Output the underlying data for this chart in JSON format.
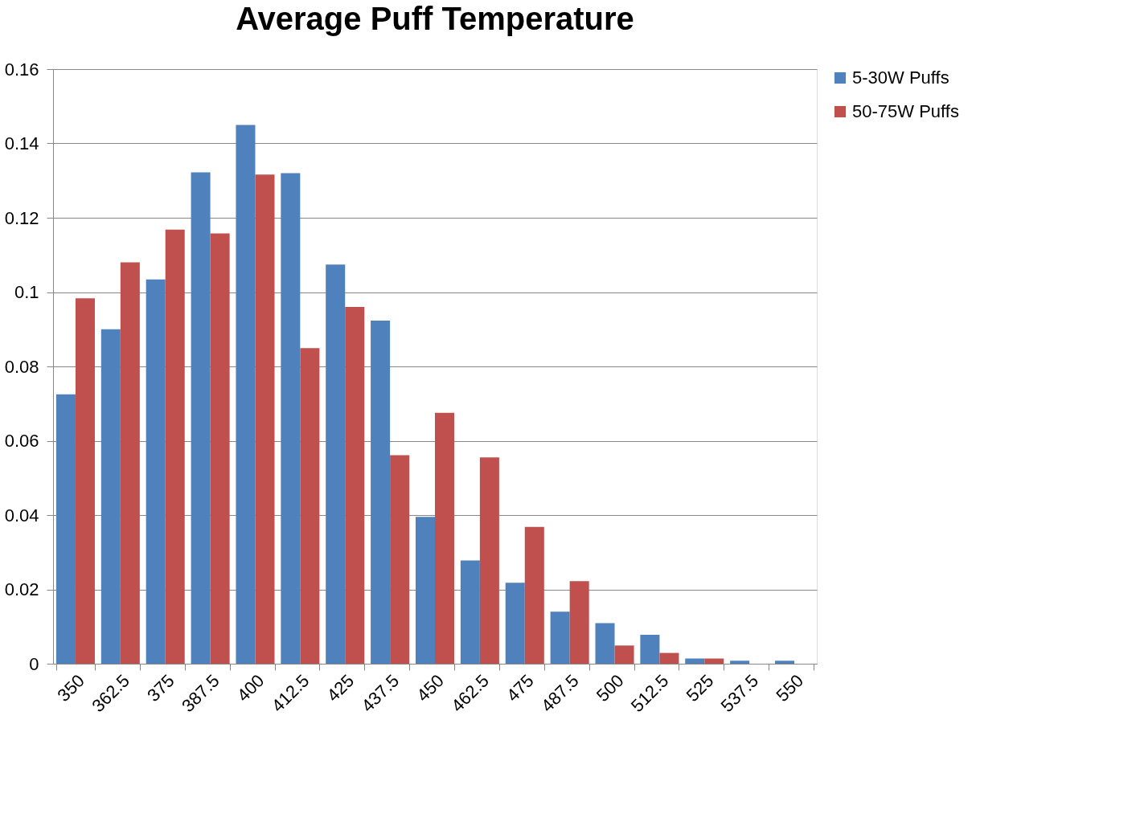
{
  "chart_data": {
    "type": "bar",
    "title": "Average Puff Temperature",
    "categories": [
      "350",
      "362.5",
      "375",
      "387.5",
      "400",
      "412.5",
      "425",
      "437.5",
      "450",
      "462.5",
      "475",
      "487.5",
      "500",
      "512.5",
      "525",
      "537.5",
      "550"
    ],
    "series": [
      {
        "name": "5-30W Puffs",
        "color": "#4f81bd",
        "values": [
          0.0725,
          0.09,
          0.1034,
          0.1322,
          0.145,
          0.132,
          0.1074,
          0.0923,
          0.0395,
          0.0278,
          0.0218,
          0.014,
          0.0109,
          0.0078,
          0.0014,
          0.0008,
          0.0008
        ]
      },
      {
        "name": "50-75W Puffs",
        "color": "#c0504d",
        "values": [
          0.0983,
          0.108,
          0.1168,
          0.1158,
          0.1316,
          0.0849,
          0.096,
          0.0561,
          0.0675,
          0.0555,
          0.0368,
          0.0222,
          0.0049,
          0.0029,
          0.0014,
          0,
          0
        ]
      }
    ],
    "ylim": [
      0,
      0.16
    ],
    "yticks": [
      0,
      0.02,
      0.04,
      0.06,
      0.08,
      0.1,
      0.12,
      0.14,
      0.16
    ],
    "grid": "y",
    "legend": "right"
  }
}
